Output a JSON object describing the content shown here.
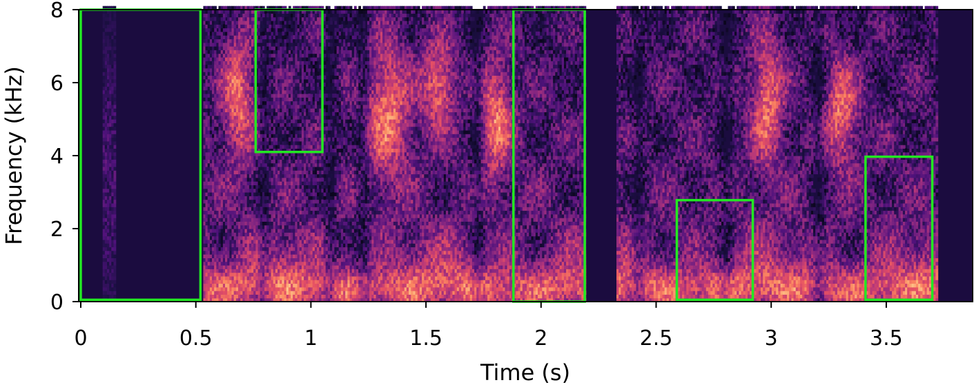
{
  "chart_data": {
    "type": "heatmap",
    "title": "",
    "xlabel": "Time (s)",
    "ylabel": "Frequency (kHz)",
    "xlim": [
      0,
      3.9
    ],
    "ylim": [
      0,
      8
    ],
    "x_ticks": [
      {
        "value": 0,
        "label": "0"
      },
      {
        "value": 0.5,
        "label": "0.5"
      },
      {
        "value": 1,
        "label": "1"
      },
      {
        "value": 1.5,
        "label": "1.5"
      },
      {
        "value": 2,
        "label": "2"
      },
      {
        "value": 2.5,
        "label": "2.5"
      },
      {
        "value": 3,
        "label": "3"
      },
      {
        "value": 3.5,
        "label": "3.5"
      }
    ],
    "y_ticks": [
      {
        "value": 0,
        "label": "0"
      },
      {
        "value": 2,
        "label": "2"
      },
      {
        "value": 4,
        "label": "4"
      },
      {
        "value": 6,
        "label": "6"
      },
      {
        "value": 8,
        "label": "8"
      }
    ],
    "colormap": "magma",
    "grid": false,
    "highlight_color": "#22e822",
    "highlight_boxes": [
      {
        "t_start": 0.0,
        "t_end": 0.52,
        "f_low": 0.05,
        "f_high": 8.0
      },
      {
        "t_start": 0.76,
        "t_end": 1.05,
        "f_low": 4.1,
        "f_high": 8.0
      },
      {
        "t_start": 1.88,
        "t_end": 2.19,
        "f_low": 0.0,
        "f_high": 8.0
      },
      {
        "t_start": 2.59,
        "t_end": 2.92,
        "f_low": 0.05,
        "f_high": 2.78
      },
      {
        "t_start": 3.41,
        "t_end": 3.7,
        "f_low": 0.05,
        "f_high": 3.97
      }
    ]
  }
}
